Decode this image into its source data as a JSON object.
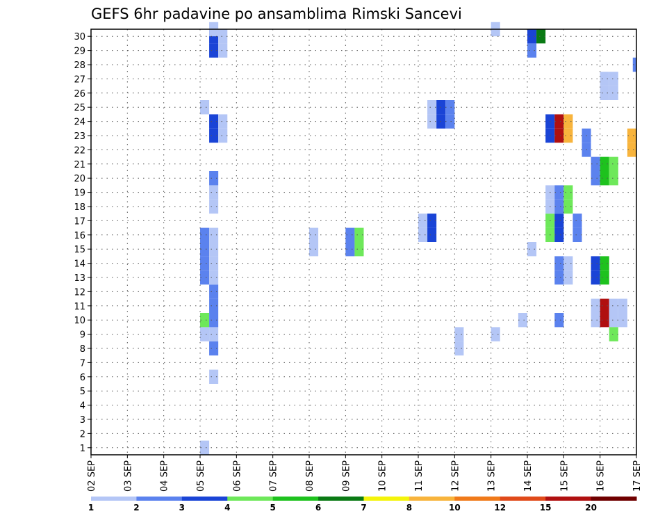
{
  "chart_data": {
    "type": "heatmap",
    "title": "GEFS 6hr padavine po ansamblima Rimski Sancevi",
    "xlabel": "",
    "ylabel": "",
    "x_ticks": [
      "02 SEP",
      "03 SEP",
      "04 SEP",
      "05 SEP",
      "06 SEP",
      "07 SEP",
      "08 SEP",
      "09 SEP",
      "10 SEP",
      "11 SEP",
      "12 SEP",
      "13 SEP",
      "14 SEP",
      "15 SEP",
      "16 SEP",
      "17 SEP"
    ],
    "y_ticks": [
      1,
      2,
      3,
      4,
      5,
      6,
      7,
      8,
      9,
      10,
      11,
      12,
      13,
      14,
      15,
      16,
      17,
      18,
      19,
      20,
      21,
      22,
      23,
      24,
      25,
      26,
      27,
      28,
      29,
      30
    ],
    "xlim_days": [
      0,
      15
    ],
    "ylim": [
      0.5,
      30.5
    ],
    "grid": true,
    "colorbar": {
      "placement": "bottom",
      "labels": [
        "1",
        "2",
        "3",
        "4",
        "5",
        "6",
        "7",
        "8",
        "10",
        "12",
        "15",
        "20"
      ],
      "colors": [
        "#b4c6f6",
        "#5b82ee",
        "#1a44d6",
        "#6ee85a",
        "#1ec21e",
        "#0a7a14",
        "#f4f40a",
        "#f8b43c",
        "#f07a1a",
        "#e04a1a",
        "#b01010",
        "#700000"
      ]
    },
    "cells_note_x_unit": "forecast hour offset from 02 SEP 00Z in 6h steps",
    "cells": [
      {
        "x": 12,
        "y": 1,
        "c": 0
      },
      {
        "x": 13,
        "y": 6,
        "c": 0
      },
      {
        "x": 13,
        "y": 8,
        "c": 1
      },
      {
        "x": 12,
        "y": 9,
        "c": 0
      },
      {
        "x": 13,
        "y": 9,
        "c": 0
      },
      {
        "x": 12,
        "y": 10,
        "c": 3
      },
      {
        "x": 13,
        "y": 10,
        "c": 1
      },
      {
        "x": 13,
        "y": 11,
        "c": 1
      },
      {
        "x": 13,
        "y": 12,
        "c": 1
      },
      {
        "x": 12,
        "y": 13,
        "c": 1
      },
      {
        "x": 13,
        "y": 13,
        "c": 0
      },
      {
        "x": 12,
        "y": 14,
        "c": 1
      },
      {
        "x": 13,
        "y": 14,
        "c": 0
      },
      {
        "x": 12,
        "y": 15,
        "c": 1
      },
      {
        "x": 13,
        "y": 15,
        "c": 0
      },
      {
        "x": 12,
        "y": 16,
        "c": 1
      },
      {
        "x": 13,
        "y": 16,
        "c": 0
      },
      {
        "x": 13,
        "y": 18,
        "c": 0
      },
      {
        "x": 13,
        "y": 19,
        "c": 0
      },
      {
        "x": 13,
        "y": 20,
        "c": 1
      },
      {
        "x": 13,
        "y": 23,
        "c": 2
      },
      {
        "x": 14,
        "y": 23,
        "c": 0
      },
      {
        "x": 13,
        "y": 24,
        "c": 2
      },
      {
        "x": 14,
        "y": 24,
        "c": 0
      },
      {
        "x": 12,
        "y": 25,
        "c": 0
      },
      {
        "x": 13,
        "y": 29,
        "c": 2
      },
      {
        "x": 14,
        "y": 29,
        "c": 0
      },
      {
        "x": 13,
        "y": 30,
        "c": 2
      },
      {
        "x": 14,
        "y": 30,
        "c": 0
      },
      {
        "x": 13,
        "y": 30.5,
        "c": 0
      },
      {
        "x": 24,
        "y": 15,
        "c": 0
      },
      {
        "x": 24,
        "y": 16,
        "c": 0
      },
      {
        "x": 28,
        "y": 15,
        "c": 1
      },
      {
        "x": 29,
        "y": 15,
        "c": 3
      },
      {
        "x": 28,
        "y": 16,
        "c": 1
      },
      {
        "x": 29,
        "y": 16,
        "c": 3
      },
      {
        "x": 36,
        "y": 16,
        "c": 0
      },
      {
        "x": 37,
        "y": 16,
        "c": 2
      },
      {
        "x": 36,
        "y": 17,
        "c": 0
      },
      {
        "x": 37,
        "y": 17,
        "c": 2
      },
      {
        "x": 37,
        "y": 24,
        "c": 0
      },
      {
        "x": 38,
        "y": 24,
        "c": 2
      },
      {
        "x": 39,
        "y": 24,
        "c": 1
      },
      {
        "x": 37,
        "y": 25,
        "c": 0
      },
      {
        "x": 38,
        "y": 25,
        "c": 2
      },
      {
        "x": 39,
        "y": 25,
        "c": 1
      },
      {
        "x": 40,
        "y": 8,
        "c": 0
      },
      {
        "x": 40,
        "y": 9,
        "c": 0
      },
      {
        "x": 44,
        "y": 9,
        "c": 0
      },
      {
        "x": 44,
        "y": 30.5,
        "c": 0
      },
      {
        "x": 47,
        "y": 10,
        "c": 0
      },
      {
        "x": 48,
        "y": 15,
        "c": 0
      },
      {
        "x": 48,
        "y": 29,
        "c": 1
      },
      {
        "x": 48,
        "y": 30,
        "c": 2
      },
      {
        "x": 49,
        "y": 30,
        "c": 5
      },
      {
        "x": 50,
        "y": 16,
        "c": 3
      },
      {
        "x": 51,
        "y": 16,
        "c": 2
      },
      {
        "x": 53,
        "y": 16,
        "c": 1
      },
      {
        "x": 50,
        "y": 17,
        "c": 3
      },
      {
        "x": 51,
        "y": 17,
        "c": 2
      },
      {
        "x": 53,
        "y": 17,
        "c": 1
      },
      {
        "x": 50,
        "y": 18,
        "c": 0
      },
      {
        "x": 51,
        "y": 18,
        "c": 1
      },
      {
        "x": 52,
        "y": 18,
        "c": 3
      },
      {
        "x": 50,
        "y": 19,
        "c": 0
      },
      {
        "x": 51,
        "y": 19,
        "c": 1
      },
      {
        "x": 52,
        "y": 19,
        "c": 3
      },
      {
        "x": 50,
        "y": 23,
        "c": 2
      },
      {
        "x": 51,
        "y": 23,
        "c": 10
      },
      {
        "x": 52,
        "y": 23,
        "c": 7
      },
      {
        "x": 50,
        "y": 24,
        "c": 2
      },
      {
        "x": 51,
        "y": 24,
        "c": 10
      },
      {
        "x": 52,
        "y": 24,
        "c": 7
      },
      {
        "x": 51,
        "y": 10,
        "c": 1
      },
      {
        "x": 51,
        "y": 13,
        "c": 1
      },
      {
        "x": 52,
        "y": 13,
        "c": 0
      },
      {
        "x": 51,
        "y": 14,
        "c": 1
      },
      {
        "x": 52,
        "y": 14,
        "c": 0
      },
      {
        "x": 54,
        "y": 22,
        "c": 1
      },
      {
        "x": 54,
        "y": 23,
        "c": 1
      },
      {
        "x": 55,
        "y": 10,
        "c": 0
      },
      {
        "x": 56,
        "y": 10,
        "c": 10
      },
      {
        "x": 57,
        "y": 10,
        "c": 0
      },
      {
        "x": 58,
        "y": 10,
        "c": 0
      },
      {
        "x": 55,
        "y": 11,
        "c": 0
      },
      {
        "x": 56,
        "y": 11,
        "c": 10
      },
      {
        "x": 57,
        "y": 11,
        "c": 0
      },
      {
        "x": 58,
        "y": 11,
        "c": 0
      },
      {
        "x": 57,
        "y": 9,
        "c": 3
      },
      {
        "x": 55,
        "y": 13,
        "c": 2
      },
      {
        "x": 56,
        "y": 13,
        "c": 4
      },
      {
        "x": 55,
        "y": 14,
        "c": 2
      },
      {
        "x": 56,
        "y": 14,
        "c": 4
      },
      {
        "x": 55,
        "y": 20,
        "c": 1
      },
      {
        "x": 56,
        "y": 20,
        "c": 4
      },
      {
        "x": 57,
        "y": 20,
        "c": 3
      },
      {
        "x": 55,
        "y": 21,
        "c": 1
      },
      {
        "x": 56,
        "y": 21,
        "c": 4
      },
      {
        "x": 57,
        "y": 21,
        "c": 3
      },
      {
        "x": 56,
        "y": 26,
        "c": 0
      },
      {
        "x": 57,
        "y": 26,
        "c": 0
      },
      {
        "x": 56,
        "y": 27,
        "c": 0
      },
      {
        "x": 57,
        "y": 27,
        "c": 0
      },
      {
        "x": 59,
        "y": 22,
        "c": 7
      },
      {
        "x": 59,
        "y": 23,
        "c": 7
      },
      {
        "x": 59.6,
        "y": 28,
        "c": 1
      }
    ]
  }
}
